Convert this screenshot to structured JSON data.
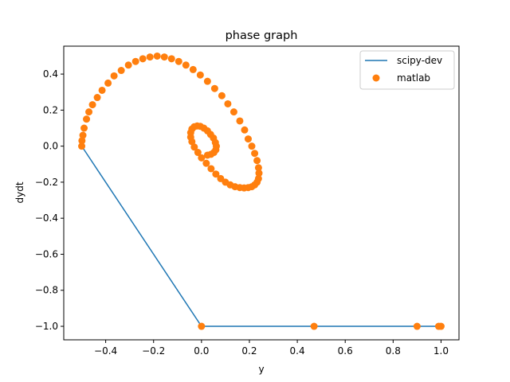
{
  "chart_data": {
    "type": "line",
    "title": "phase graph",
    "xlabel": "y",
    "ylabel": "dydt",
    "xlim": [
      -0.575,
      1.075
    ],
    "ylim": [
      -1.075,
      0.555
    ],
    "xticks": [
      -0.4,
      -0.2,
      0.0,
      0.2,
      0.4,
      0.6,
      0.8,
      1.0
    ],
    "xtick_labels": [
      "−0.4",
      "−0.2",
      "0.0",
      "0.2",
      "0.4",
      "0.6",
      "0.8",
      "1.0"
    ],
    "yticks": [
      0.4,
      0.2,
      0.0,
      -0.2,
      -0.4,
      -0.6,
      -0.8,
      -1.0
    ],
    "ytick_labels": [
      "0.4",
      "0.2",
      "0.0",
      "−0.2",
      "−0.4",
      "−0.6",
      "−0.8",
      "−1.0"
    ],
    "grid": false,
    "legend_position": "top-right",
    "series": [
      {
        "name": "scipy-dev",
        "style": "line",
        "color": "#1f77b4",
        "x": [
          -0.5,
          0.0,
          0.47,
          0.9,
          0.99,
          1.0
        ],
        "y": [
          0.0,
          -1.0,
          -1.0,
          -1.0,
          -1.0,
          -1.0
        ]
      },
      {
        "name": "matlab",
        "style": "markers",
        "color": "#ff7f0e",
        "x": [
          1.0,
          0.99,
          0.9,
          0.47,
          0.0,
          -0.5,
          -0.499,
          -0.495,
          -0.49,
          -0.48,
          -0.47,
          -0.455,
          -0.435,
          -0.415,
          -0.39,
          -0.365,
          -0.335,
          -0.305,
          -0.275,
          -0.245,
          -0.215,
          -0.185,
          -0.155,
          -0.125,
          -0.095,
          -0.065,
          -0.035,
          -0.005,
          0.025,
          0.055,
          0.085,
          0.11,
          0.135,
          0.16,
          0.18,
          0.195,
          0.21,
          0.222,
          0.232,
          0.238,
          0.24,
          0.238,
          0.232,
          0.222,
          0.21,
          0.195,
          0.178,
          0.16,
          0.14,
          0.12,
          0.1,
          0.08,
          0.06,
          0.04,
          0.02,
          0.0,
          -0.015,
          -0.03,
          -0.04,
          -0.045,
          -0.045,
          -0.04,
          -0.03,
          -0.018,
          -0.005,
          0.01,
          0.025,
          0.038,
          0.05,
          0.058,
          0.062,
          0.06,
          0.052,
          0.04,
          0.025
        ],
        "y": [
          -1.0,
          -1.0,
          -1.0,
          -1.0,
          -1.0,
          0.0,
          0.03,
          0.06,
          0.1,
          0.15,
          0.19,
          0.23,
          0.27,
          0.31,
          0.35,
          0.39,
          0.42,
          0.45,
          0.47,
          0.485,
          0.495,
          0.5,
          0.495,
          0.485,
          0.47,
          0.45,
          0.425,
          0.395,
          0.36,
          0.32,
          0.28,
          0.235,
          0.19,
          0.14,
          0.09,
          0.04,
          0.0,
          -0.04,
          -0.08,
          -0.12,
          -0.15,
          -0.18,
          -0.2,
          -0.215,
          -0.225,
          -0.23,
          -0.232,
          -0.23,
          -0.225,
          -0.215,
          -0.2,
          -0.18,
          -0.155,
          -0.125,
          -0.095,
          -0.065,
          -0.035,
          -0.005,
          0.025,
          0.05,
          0.075,
          0.095,
          0.108,
          0.112,
          0.11,
          0.1,
          0.085,
          0.065,
          0.045,
          0.02,
          0.0,
          -0.02,
          -0.035,
          -0.045,
          -0.05
        ]
      }
    ]
  }
}
